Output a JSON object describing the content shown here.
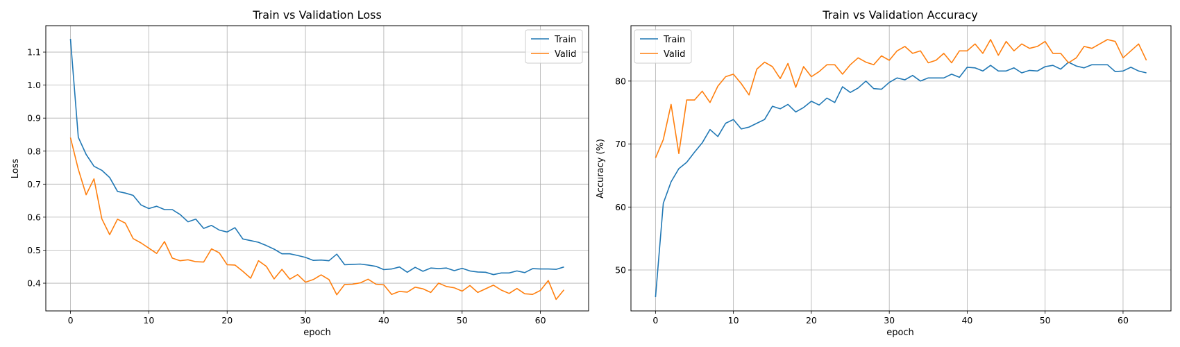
{
  "chart_data": [
    {
      "type": "line",
      "title": "Train vs Validation Loss",
      "xlabel": "epoch",
      "ylabel": "Loss",
      "xlim": [
        -3.15,
        66.15
      ],
      "ylim": [
        0.316,
        1.18
      ],
      "xticks": [
        0,
        10,
        20,
        30,
        40,
        50,
        60
      ],
      "yticks": [
        0.4,
        0.5,
        0.6,
        0.7,
        0.8,
        0.9,
        1.0,
        1.1
      ],
      "ytick_decimals": 1,
      "grid": true,
      "legend_position": "top-right",
      "x": [
        0,
        1,
        2,
        3,
        4,
        5,
        6,
        7,
        8,
        9,
        10,
        11,
        12,
        13,
        14,
        15,
        16,
        17,
        18,
        19,
        20,
        21,
        22,
        23,
        24,
        25,
        26,
        27,
        28,
        29,
        30,
        31,
        32,
        33,
        34,
        35,
        36,
        37,
        38,
        39,
        40,
        41,
        42,
        43,
        44,
        45,
        46,
        47,
        48,
        49,
        50,
        51,
        52,
        53,
        54,
        55,
        56,
        57,
        58,
        59,
        60,
        61,
        62,
        63
      ],
      "series": [
        {
          "name": "Train",
          "color": "#1f77b4",
          "values": [
            1.14,
            0.842,
            0.79,
            0.754,
            0.742,
            0.72,
            0.678,
            0.673,
            0.666,
            0.637,
            0.626,
            0.633,
            0.623,
            0.623,
            0.608,
            0.586,
            0.594,
            0.566,
            0.575,
            0.561,
            0.555,
            0.568,
            0.534,
            0.529,
            0.524,
            0.514,
            0.503,
            0.489,
            0.489,
            0.484,
            0.478,
            0.469,
            0.47,
            0.468,
            0.488,
            0.456,
            0.457,
            0.458,
            0.455,
            0.451,
            0.441,
            0.443,
            0.449,
            0.433,
            0.448,
            0.436,
            0.446,
            0.444,
            0.446,
            0.438,
            0.445,
            0.437,
            0.434,
            0.433,
            0.426,
            0.431,
            0.431,
            0.437,
            0.432,
            0.444,
            0.443,
            0.443,
            0.442,
            0.449
          ]
        },
        {
          "name": "Valid",
          "color": "#ff7f0e",
          "values": [
            0.841,
            0.745,
            0.668,
            0.716,
            0.595,
            0.547,
            0.594,
            0.582,
            0.535,
            0.522,
            0.506,
            0.49,
            0.526,
            0.476,
            0.468,
            0.471,
            0.465,
            0.464,
            0.504,
            0.492,
            0.456,
            0.455,
            0.436,
            0.415,
            0.468,
            0.451,
            0.413,
            0.442,
            0.412,
            0.426,
            0.403,
            0.411,
            0.425,
            0.411,
            0.365,
            0.396,
            0.397,
            0.401,
            0.412,
            0.397,
            0.395,
            0.366,
            0.375,
            0.373,
            0.388,
            0.383,
            0.372,
            0.4,
            0.39,
            0.386,
            0.376,
            0.393,
            0.372,
            0.383,
            0.394,
            0.379,
            0.369,
            0.384,
            0.368,
            0.366,
            0.378,
            0.408,
            0.351,
            0.38
          ]
        }
      ]
    },
    {
      "type": "line",
      "title": "Train vs Validation Accuracy",
      "xlabel": "epoch",
      "ylabel": "Accuracy (%)",
      "xlim": [
        -3.15,
        66.15
      ],
      "ylim": [
        43.5,
        88.8
      ],
      "xticks": [
        0,
        10,
        20,
        30,
        40,
        50,
        60
      ],
      "yticks": [
        50,
        60,
        70,
        80
      ],
      "ytick_decimals": 0,
      "grid": true,
      "legend_position": "top-left",
      "x": [
        0,
        1,
        2,
        3,
        4,
        5,
        6,
        7,
        8,
        9,
        10,
        11,
        12,
        13,
        14,
        15,
        16,
        17,
        18,
        19,
        20,
        21,
        22,
        23,
        24,
        25,
        26,
        27,
        28,
        29,
        30,
        31,
        32,
        33,
        34,
        35,
        36,
        37,
        38,
        39,
        40,
        41,
        42,
        43,
        44,
        45,
        46,
        47,
        48,
        49,
        50,
        51,
        52,
        53,
        54,
        55,
        56,
        57,
        58,
        59,
        60,
        61,
        62,
        63
      ],
      "series": [
        {
          "name": "Train",
          "color": "#1f77b4",
          "values": [
            45.7,
            60.6,
            64.0,
            66.1,
            67.1,
            68.7,
            70.2,
            72.3,
            71.2,
            73.3,
            73.9,
            72.4,
            72.7,
            73.3,
            73.9,
            76.0,
            75.6,
            76.3,
            75.1,
            75.8,
            76.8,
            76.2,
            77.3,
            76.6,
            79.1,
            78.2,
            78.9,
            80.0,
            78.8,
            78.7,
            79.8,
            80.5,
            80.2,
            80.9,
            80.0,
            80.5,
            80.5,
            80.5,
            81.1,
            80.6,
            82.2,
            82.1,
            81.6,
            82.5,
            81.6,
            81.6,
            82.1,
            81.3,
            81.7,
            81.6,
            82.3,
            82.5,
            81.9,
            83.0,
            82.4,
            82.1,
            82.6,
            82.6,
            82.6,
            81.5,
            81.6,
            82.2,
            81.6,
            81.3
          ]
        },
        {
          "name": "Valid",
          "color": "#ff7f0e",
          "values": [
            67.8,
            70.7,
            76.3,
            68.5,
            77.0,
            77.0,
            78.4,
            76.6,
            79.2,
            80.7,
            81.1,
            79.6,
            77.8,
            81.9,
            83.0,
            82.3,
            80.4,
            82.8,
            79.0,
            82.3,
            80.7,
            81.5,
            82.6,
            82.6,
            81.1,
            82.6,
            83.7,
            83.0,
            82.6,
            84.0,
            83.3,
            84.8,
            85.5,
            84.4,
            84.8,
            82.9,
            83.3,
            84.4,
            82.9,
            84.8,
            84.8,
            85.9,
            84.4,
            86.6,
            84.1,
            86.3,
            84.8,
            85.9,
            85.2,
            85.5,
            86.3,
            84.4,
            84.4,
            82.9,
            83.7,
            85.5,
            85.2,
            85.9,
            86.6,
            86.3,
            83.7,
            84.8,
            85.9,
            83.3
          ]
        }
      ]
    }
  ]
}
